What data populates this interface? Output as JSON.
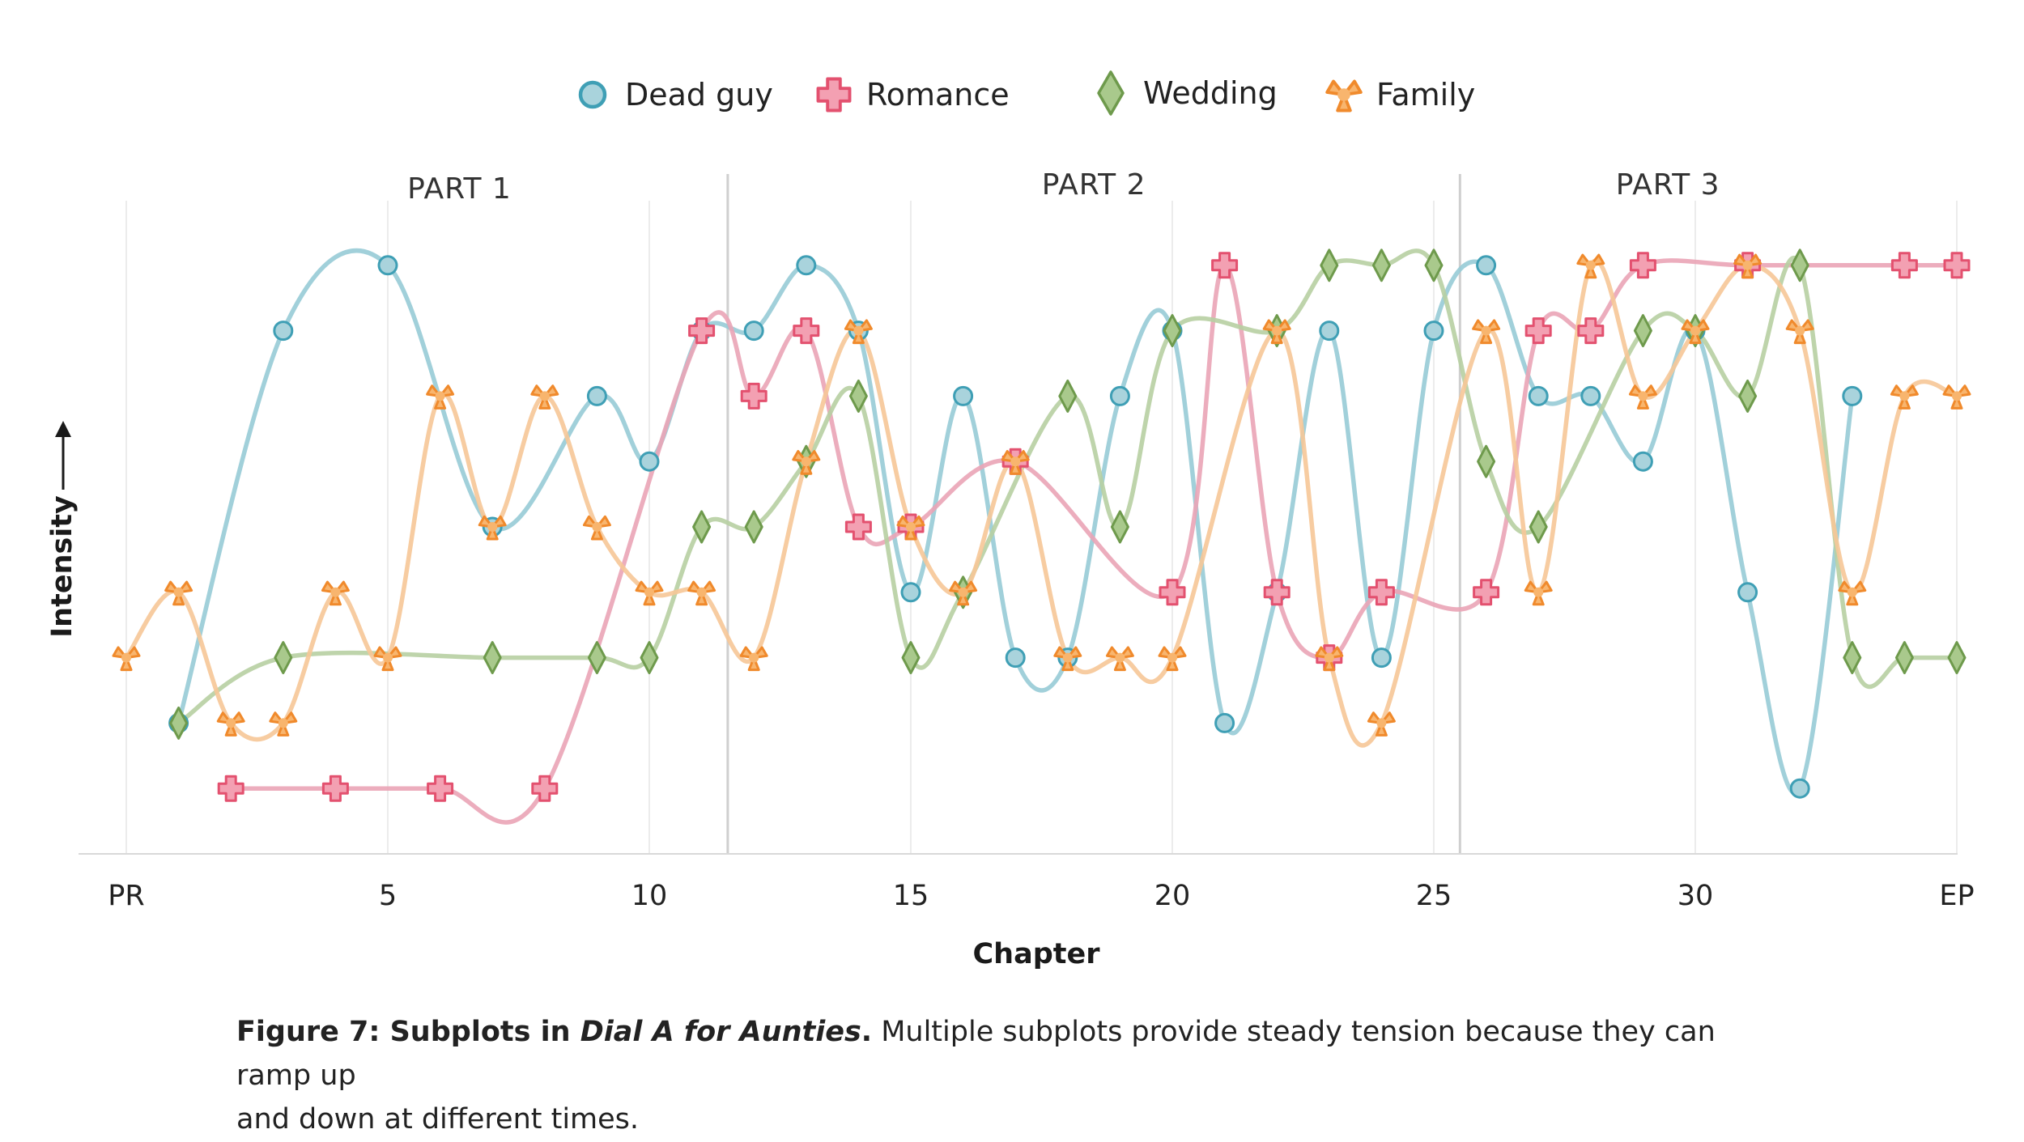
{
  "chart_data": {
    "type": "line",
    "xlabel": "Chapter",
    "ylabel": "Intensity",
    "x_tick_labels": [
      {
        "x": 0,
        "label": "PR"
      },
      {
        "x": 5,
        "label": "5"
      },
      {
        "x": 10,
        "label": "10"
      },
      {
        "x": 15,
        "label": "15"
      },
      {
        "x": 20,
        "label": "20"
      },
      {
        "x": 25,
        "label": "25"
      },
      {
        "x": 30,
        "label": "30"
      },
      {
        "x": 35,
        "label": "EP"
      }
    ],
    "xlim": [
      -0.9,
      35
    ],
    "ylim": [
      0.5,
      10
    ],
    "parts": [
      {
        "label": "PART  1",
        "start": 0,
        "end": 11.5
      },
      {
        "label": "PART  2",
        "start": 11.5,
        "end": 25.5
      },
      {
        "label": "PART  3",
        "start": 25.5,
        "end": 35
      }
    ],
    "part_dividers": [
      11.5,
      25.5
    ],
    "series": [
      {
        "name": "Dead guy",
        "marker": "circle",
        "color": "#3f9fb5",
        "line_color": "#97cbd6",
        "points": [
          [
            1,
            2
          ],
          [
            3,
            8
          ],
          [
            5,
            9
          ],
          [
            7,
            5
          ],
          [
            9,
            7
          ],
          [
            10,
            6
          ],
          [
            11,
            8
          ],
          [
            12,
            8
          ],
          [
            13,
            9
          ],
          [
            14,
            8
          ],
          [
            15,
            4
          ],
          [
            16,
            7
          ],
          [
            17,
            3
          ],
          [
            18,
            3
          ],
          [
            19,
            7
          ],
          [
            20,
            8
          ],
          [
            21,
            2
          ],
          [
            22,
            4
          ],
          [
            23,
            8
          ],
          [
            24,
            3
          ],
          [
            25,
            8
          ],
          [
            26,
            9
          ],
          [
            27,
            7
          ],
          [
            28,
            7
          ],
          [
            29,
            6
          ],
          [
            30,
            8
          ],
          [
            31,
            4
          ],
          [
            32,
            1
          ],
          [
            33,
            7
          ]
        ]
      },
      {
        "name": "Romance",
        "marker": "cross",
        "color": "#e3516f",
        "line_color": "#eaa4b6",
        "points": [
          [
            2,
            1
          ],
          [
            4,
            1
          ],
          [
            6,
            1
          ],
          [
            8,
            1
          ],
          [
            11,
            8
          ],
          [
            12,
            7
          ],
          [
            13,
            8
          ],
          [
            14,
            5
          ],
          [
            15,
            5
          ],
          [
            17,
            6
          ],
          [
            20,
            4
          ],
          [
            21,
            9
          ],
          [
            22,
            4
          ],
          [
            23,
            3
          ],
          [
            24,
            4
          ],
          [
            26,
            4
          ],
          [
            27,
            8
          ],
          [
            28,
            8
          ],
          [
            29,
            9
          ],
          [
            31,
            9
          ],
          [
            34,
            9
          ],
          [
            35,
            9
          ]
        ]
      },
      {
        "name": "Wedding",
        "marker": "diamond",
        "color": "#7aa35a",
        "line_color": "#b7cfa2",
        "points": [
          [
            1,
            2
          ],
          [
            3,
            3
          ],
          [
            7,
            3
          ],
          [
            9,
            3
          ],
          [
            10,
            3
          ],
          [
            11,
            5
          ],
          [
            12,
            5
          ],
          [
            13,
            6
          ],
          [
            14,
            7
          ],
          [
            15,
            3
          ],
          [
            16,
            4
          ],
          [
            18,
            7
          ],
          [
            19,
            5
          ],
          [
            20,
            8
          ],
          [
            22,
            8
          ],
          [
            23,
            9
          ],
          [
            24,
            9
          ],
          [
            25,
            9
          ],
          [
            26,
            6
          ],
          [
            27,
            5
          ],
          [
            29,
            8
          ],
          [
            30,
            8
          ],
          [
            31,
            7
          ],
          [
            32,
            9
          ],
          [
            33,
            3
          ],
          [
            34,
            3
          ],
          [
            35,
            3
          ]
        ]
      },
      {
        "name": "Family",
        "marker": "tri",
        "color": "#f08a2c",
        "line_color": "#f6c697",
        "points": [
          [
            0,
            3
          ],
          [
            1,
            4
          ],
          [
            2,
            2
          ],
          [
            3,
            2
          ],
          [
            4,
            4
          ],
          [
            5,
            3
          ],
          [
            6,
            7
          ],
          [
            7,
            5
          ],
          [
            8,
            7
          ],
          [
            9,
            5
          ],
          [
            10,
            4
          ],
          [
            11,
            4
          ],
          [
            12,
            3
          ],
          [
            13,
            6
          ],
          [
            14,
            8
          ],
          [
            15,
            5
          ],
          [
            16,
            4
          ],
          [
            17,
            6
          ],
          [
            18,
            3
          ],
          [
            19,
            3
          ],
          [
            20,
            3
          ],
          [
            22,
            8
          ],
          [
            23,
            3
          ],
          [
            24,
            2
          ],
          [
            26,
            8
          ],
          [
            27,
            4
          ],
          [
            28,
            9
          ],
          [
            29,
            7
          ],
          [
            30,
            8
          ],
          [
            31,
            9
          ],
          [
            32,
            8
          ],
          [
            33,
            4
          ],
          [
            34,
            7
          ],
          [
            35,
            7
          ]
        ]
      }
    ],
    "legend_position": "top-center"
  },
  "caption": {
    "lead": "Figure 7: Subplots in ",
    "book": "Dial A for Aunties",
    "period": ".",
    "body_line1": " Multiple subplots provide steady tension because they can ramp up",
    "body_line2": "and down at different times."
  }
}
